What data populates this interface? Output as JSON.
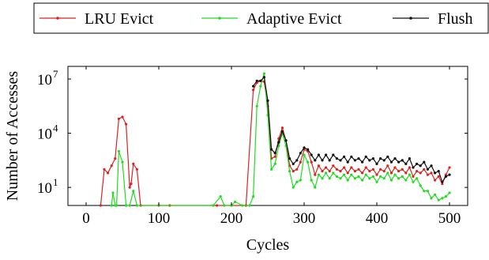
{
  "chart_data": {
    "type": "line",
    "xlabel": "Cycles",
    "ylabel": "Number of Accesses",
    "x_ticks": [
      0,
      100,
      200,
      300,
      400,
      500
    ],
    "x_tick_labels": [
      "0",
      "100",
      "200",
      "300",
      "400",
      "500"
    ],
    "y_ticks": [
      1,
      4,
      7
    ],
    "y_tick_labels": [
      "10",
      "10",
      "10"
    ],
    "y_tick_exponents": [
      "1",
      "4",
      "7"
    ],
    "xlim": [
      -25,
      525
    ],
    "ylim": [
      0,
      7.7
    ],
    "y_scale": "log10",
    "grid": false,
    "legend_placement": "top",
    "series": [
      {
        "name": "LRU Evict",
        "color": "#dd2222",
        "points": [
          [
            20,
            0.0
          ],
          [
            25,
            2.0
          ],
          [
            30,
            1.8
          ],
          [
            35,
            2.2
          ],
          [
            40,
            2.6
          ],
          [
            45,
            4.8
          ],
          [
            50,
            4.9
          ],
          [
            55,
            4.5
          ],
          [
            60,
            1.0
          ],
          [
            62,
            1.2
          ],
          [
            65,
            2.3
          ],
          [
            70,
            2.0
          ],
          [
            75,
            0.0
          ],
          [
            100,
            0.0
          ],
          [
            115,
            0.0
          ],
          [
            180,
            0.0
          ],
          [
            200,
            0.0
          ],
          [
            220,
            0.0
          ],
          [
            230,
            6.4
          ],
          [
            235,
            6.8
          ],
          [
            240,
            6.9
          ],
          [
            245,
            6.85
          ],
          [
            250,
            5.5
          ],
          [
            255,
            2.6
          ],
          [
            260,
            2.7
          ],
          [
            265,
            3.7
          ],
          [
            270,
            4.3
          ],
          [
            275,
            3.6
          ],
          [
            280,
            2.2
          ],
          [
            285,
            1.9
          ],
          [
            290,
            2.0
          ],
          [
            295,
            2.4
          ],
          [
            300,
            3.1
          ],
          [
            305,
            3.0
          ],
          [
            310,
            2.4
          ],
          [
            315,
            1.7
          ],
          [
            320,
            2.2
          ],
          [
            325,
            1.9
          ],
          [
            330,
            2.1
          ],
          [
            335,
            1.9
          ],
          [
            340,
            2.2
          ],
          [
            345,
            2.0
          ],
          [
            350,
            1.9
          ],
          [
            355,
            2.1
          ],
          [
            360,
            1.8
          ],
          [
            365,
            2.1
          ],
          [
            370,
            1.9
          ],
          [
            375,
            2.0
          ],
          [
            380,
            1.8
          ],
          [
            385,
            2.1
          ],
          [
            390,
            1.9
          ],
          [
            395,
            2.0
          ],
          [
            400,
            1.7
          ],
          [
            405,
            2.0
          ],
          [
            410,
            1.9
          ],
          [
            415,
            2.2
          ],
          [
            420,
            1.8
          ],
          [
            425,
            2.1
          ],
          [
            430,
            1.9
          ],
          [
            435,
            2.0
          ],
          [
            440,
            1.8
          ],
          [
            445,
            2.1
          ],
          [
            450,
            1.6
          ],
          [
            455,
            1.9
          ],
          [
            460,
            1.8
          ],
          [
            465,
            2.0
          ],
          [
            470,
            1.7
          ],
          [
            475,
            1.8
          ],
          [
            480,
            1.4
          ],
          [
            485,
            1.6
          ],
          [
            490,
            1.2
          ],
          [
            495,
            1.7
          ],
          [
            500,
            2.1
          ]
        ]
      },
      {
        "name": "Adaptive Evict",
        "color": "#22dd22",
        "points": [
          [
            35,
            0.0
          ],
          [
            37,
            0.7
          ],
          [
            40,
            0.0
          ],
          [
            42,
            0.0
          ],
          [
            45,
            3.0
          ],
          [
            50,
            2.4
          ],
          [
            55,
            0.0
          ],
          [
            60,
            0.0
          ],
          [
            65,
            0.8
          ],
          [
            70,
            0.0
          ],
          [
            175,
            0.0
          ],
          [
            185,
            0.5
          ],
          [
            190,
            0.0
          ],
          [
            200,
            0.0
          ],
          [
            205,
            0.2
          ],
          [
            215,
            0.0
          ],
          [
            225,
            0.0
          ],
          [
            230,
            0.5
          ],
          [
            235,
            5.5
          ],
          [
            240,
            6.6
          ],
          [
            245,
            7.3
          ],
          [
            250,
            5.0
          ],
          [
            255,
            2.0
          ],
          [
            260,
            2.3
          ],
          [
            265,
            3.3
          ],
          [
            270,
            4.0
          ],
          [
            275,
            3.3
          ],
          [
            280,
            1.9
          ],
          [
            285,
            1.0
          ],
          [
            290,
            1.3
          ],
          [
            295,
            1.4
          ],
          [
            300,
            2.8
          ],
          [
            305,
            2.4
          ],
          [
            310,
            1.4
          ],
          [
            315,
            1.0
          ],
          [
            320,
            1.7
          ],
          [
            325,
            1.5
          ],
          [
            330,
            1.8
          ],
          [
            335,
            1.5
          ],
          [
            340,
            1.8
          ],
          [
            345,
            1.6
          ],
          [
            350,
            1.5
          ],
          [
            355,
            1.7
          ],
          [
            360,
            1.4
          ],
          [
            365,
            1.7
          ],
          [
            370,
            1.5
          ],
          [
            375,
            1.6
          ],
          [
            380,
            1.4
          ],
          [
            385,
            1.7
          ],
          [
            390,
            1.5
          ],
          [
            395,
            1.6
          ],
          [
            400,
            1.3
          ],
          [
            405,
            1.6
          ],
          [
            410,
            1.5
          ],
          [
            415,
            1.8
          ],
          [
            420,
            1.4
          ],
          [
            425,
            1.7
          ],
          [
            430,
            1.5
          ],
          [
            435,
            1.6
          ],
          [
            440,
            1.4
          ],
          [
            445,
            1.7
          ],
          [
            450,
            1.3
          ],
          [
            455,
            1.5
          ],
          [
            460,
            1.1
          ],
          [
            465,
            0.8
          ],
          [
            470,
            0.8
          ],
          [
            475,
            0.4
          ],
          [
            480,
            0.6
          ],
          [
            485,
            0.3
          ],
          [
            490,
            0.4
          ],
          [
            495,
            0.5
          ],
          [
            500,
            0.7
          ]
        ]
      },
      {
        "name": "Flush",
        "color": "#111111",
        "points": [
          [
            230,
            6.6
          ],
          [
            235,
            6.9
          ],
          [
            240,
            6.9
          ],
          [
            245,
            7.1
          ],
          [
            250,
            5.8
          ],
          [
            255,
            3.1
          ],
          [
            260,
            2.9
          ],
          [
            265,
            3.5
          ],
          [
            270,
            4.1
          ],
          [
            275,
            3.6
          ],
          [
            280,
            2.6
          ],
          [
            285,
            2.3
          ],
          [
            290,
            2.5
          ],
          [
            295,
            2.9
          ],
          [
            300,
            3.2
          ],
          [
            305,
            3.1
          ],
          [
            310,
            2.8
          ],
          [
            315,
            2.5
          ],
          [
            320,
            2.8
          ],
          [
            325,
            2.5
          ],
          [
            330,
            2.8
          ],
          [
            335,
            2.5
          ],
          [
            340,
            2.8
          ],
          [
            345,
            2.6
          ],
          [
            350,
            2.5
          ],
          [
            355,
            2.7
          ],
          [
            360,
            2.4
          ],
          [
            365,
            2.7
          ],
          [
            370,
            2.5
          ],
          [
            375,
            2.6
          ],
          [
            380,
            2.4
          ],
          [
            385,
            2.7
          ],
          [
            390,
            2.5
          ],
          [
            395,
            2.6
          ],
          [
            400,
            2.3
          ],
          [
            405,
            2.6
          ],
          [
            410,
            2.5
          ],
          [
            415,
            2.7
          ],
          [
            420,
            2.4
          ],
          [
            425,
            2.6
          ],
          [
            430,
            2.4
          ],
          [
            435,
            2.5
          ],
          [
            440,
            2.3
          ],
          [
            445,
            2.6
          ],
          [
            450,
            2.1
          ],
          [
            455,
            2.3
          ],
          [
            460,
            2.2
          ],
          [
            465,
            2.4
          ],
          [
            470,
            2.0
          ],
          [
            475,
            2.2
          ],
          [
            480,
            1.8
          ],
          [
            485,
            1.9
          ],
          [
            490,
            1.3
          ],
          [
            495,
            1.6
          ],
          [
            500,
            1.7
          ]
        ]
      }
    ]
  }
}
